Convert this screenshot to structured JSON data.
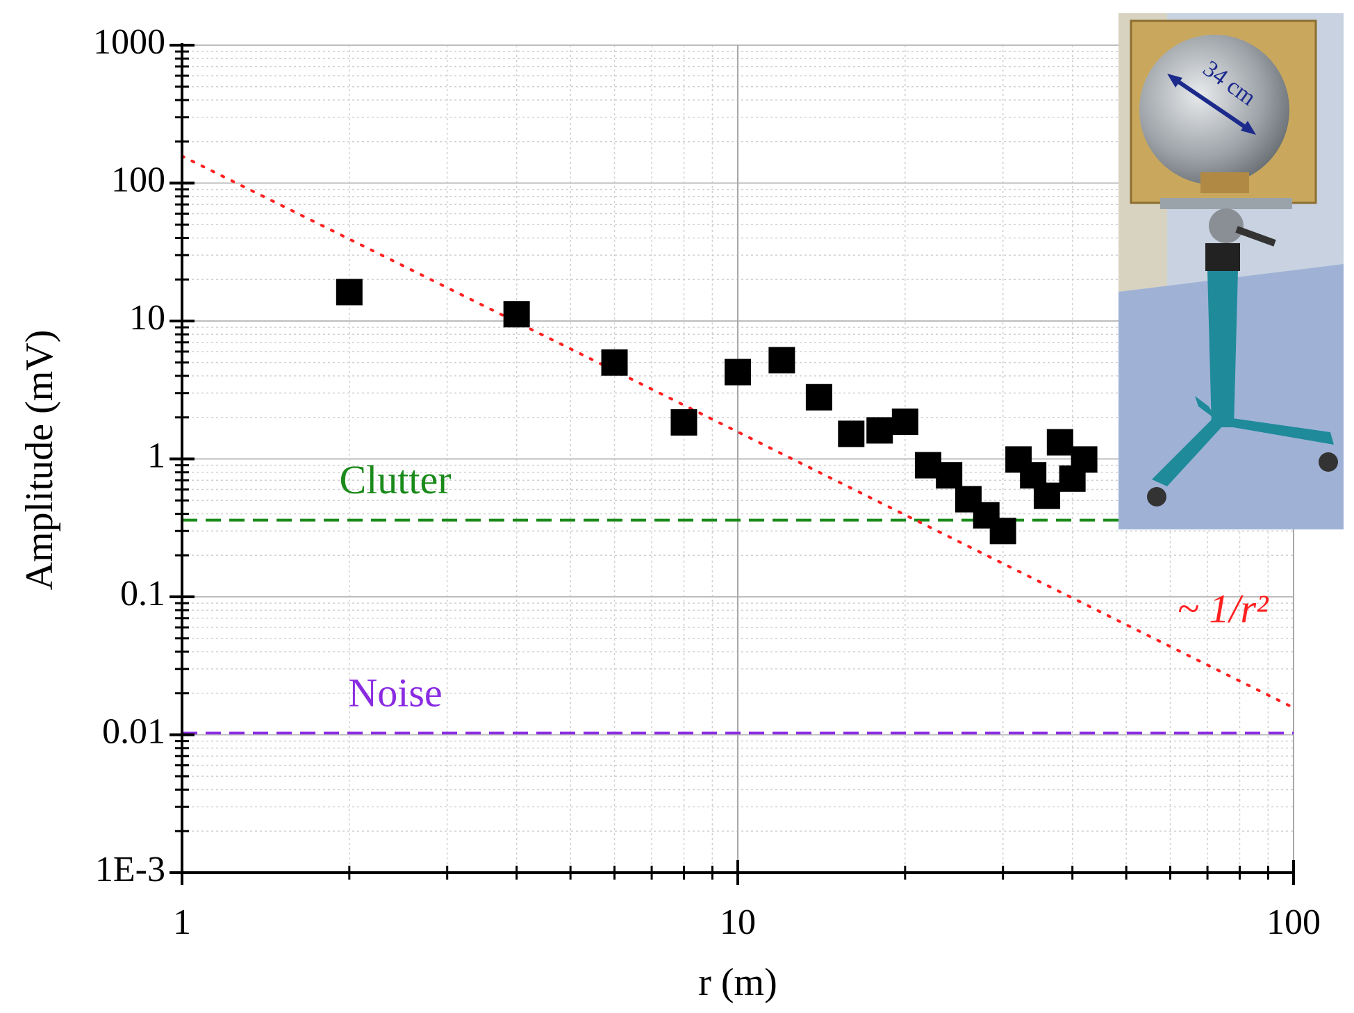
{
  "chart_data": {
    "type": "scatter",
    "x_label": "r (m)",
    "y_label": "Amplitude (mV)",
    "x": [
      2,
      4,
      6,
      8,
      10,
      12,
      14,
      16,
      18,
      20,
      22,
      24,
      26,
      28,
      30,
      32,
      34,
      36,
      38,
      40,
      42
    ],
    "values": [
      16.2,
      11.2,
      5.0,
      1.84,
      4.26,
      5.2,
      2.8,
      1.52,
      1.61,
      1.86,
      0.9,
      0.76,
      0.51,
      0.39,
      0.3,
      0.99,
      0.76,
      0.54,
      1.32,
      0.72,
      0.99
    ],
    "color": "#000000",
    "xlim": [
      1,
      100
    ],
    "xticks": [
      1,
      10,
      100
    ],
    "ylim": [
      0.001,
      1000
    ],
    "yticks": [
      {
        "value": 0.001,
        "label": "1E-3"
      },
      0.01,
      0.1,
      1,
      10,
      100,
      1000
    ],
    "log_x": true,
    "log_y": true,
    "grid": true,
    "ref_lines": [
      {
        "label": "Clutter",
        "value": 0.36,
        "color": "#1a8a1a"
      },
      {
        "label": "Noise",
        "value": 0.0103,
        "color": "#8a2be2"
      }
    ],
    "fit": {
      "label": "~ 1/r²",
      "x": [
        1,
        100
      ],
      "values": [
        157,
        0.0157
      ],
      "color": "#ff2020"
    },
    "inset_label": "34 cm"
  }
}
